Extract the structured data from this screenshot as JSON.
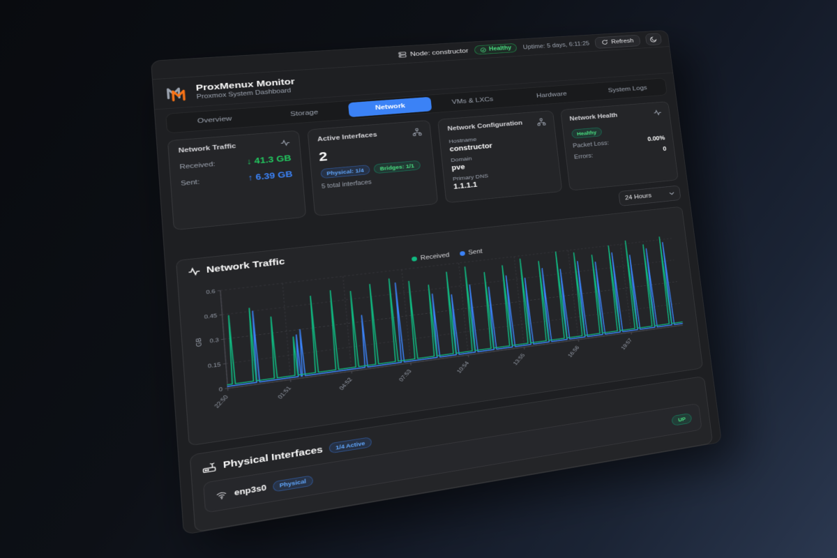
{
  "topbar": {
    "node_label": "Node: constructor",
    "health_badge": "Healthy",
    "uptime": "Uptime: 5 days, 6:11:25",
    "refresh_label": "Refresh"
  },
  "header": {
    "title": "ProxMenux Monitor",
    "subtitle": "Proxmox System Dashboard"
  },
  "tabs": {
    "items": [
      "Overview",
      "Storage",
      "Network",
      "VMs & LXCs",
      "Hardware",
      "System Logs"
    ],
    "active_index": 2
  },
  "cards": {
    "traffic": {
      "title": "Network Traffic",
      "received_label": "Received:",
      "received_value": "↓ 41.3 GB",
      "sent_label": "Sent:",
      "sent_value": "↑ 6.39 GB"
    },
    "interfaces": {
      "title": "Active Interfaces",
      "count": "2",
      "physical_badge": "Physical: 1/4",
      "bridges_badge": "Bridges: 1/1",
      "note": "5 total interfaces"
    },
    "config": {
      "title": "Network Configuration",
      "fields": [
        {
          "label": "Hostname",
          "value": "constructor"
        },
        {
          "label": "Domain",
          "value": "pve"
        },
        {
          "label": "Primary DNS",
          "value": "1.1.1.1"
        }
      ]
    },
    "health": {
      "title": "Network Health",
      "status_badge": "Healthy",
      "rows": [
        {
          "label": "Packet Loss:",
          "value": "0.00%"
        },
        {
          "label": "Errors:",
          "value": "0"
        }
      ]
    }
  },
  "time_range": "24 Hours",
  "chart_card_title": "Network Traffic",
  "chart_data": {
    "type": "line",
    "title": "Network Traffic",
    "ylabel": "GB",
    "ylim": [
      0,
      0.6
    ],
    "yticks": [
      "0",
      "0.15",
      "0.3",
      "0.45",
      "0.6"
    ],
    "xticks": [
      "22:50",
      "01:51",
      "04:52",
      "07:53",
      "10:54",
      "13:55",
      "16:56",
      "19:57"
    ],
    "x_range_hours": 24,
    "grid": "dashed",
    "legend_position": "top-center",
    "series": [
      {
        "name": "Sent",
        "color": "#3b82f6",
        "baseline_gb": 0.012,
        "spikes": [
          [
            1.45,
            0.45
          ],
          [
            3.45,
            0.27
          ],
          [
            3.65,
            0.3
          ],
          [
            6.75,
            0.34
          ],
          [
            8.6,
            0.52
          ],
          [
            10.45,
            0.42
          ],
          [
            11.45,
            0.4
          ],
          [
            12.45,
            0.45
          ],
          [
            13.45,
            0.42
          ],
          [
            14.45,
            0.48
          ],
          [
            15.45,
            0.45
          ],
          [
            16.45,
            0.5
          ],
          [
            17.45,
            0.48
          ],
          [
            18.45,
            0.52
          ],
          [
            19.45,
            0.5
          ],
          [
            20.45,
            0.55
          ],
          [
            21.45,
            0.52
          ],
          [
            22.45,
            0.55
          ],
          [
            23.45,
            0.58
          ]
        ]
      },
      {
        "name": "Received",
        "color": "#10b981",
        "baseline_gb": 0.022,
        "spikes": [
          [
            0.3,
            0.44
          ],
          [
            1.3,
            0.47
          ],
          [
            2.3,
            0.4
          ],
          [
            3.3,
            0.26
          ],
          [
            4.3,
            0.5
          ],
          [
            5.3,
            0.52
          ],
          [
            6.3,
            0.5
          ],
          [
            7.3,
            0.53
          ],
          [
            8.3,
            0.55
          ],
          [
            9.3,
            0.52
          ],
          [
            10.3,
            0.48
          ],
          [
            11.3,
            0.55
          ],
          [
            12.3,
            0.57
          ],
          [
            13.3,
            0.52
          ],
          [
            14.3,
            0.55
          ],
          [
            15.3,
            0.58
          ],
          [
            16.3,
            0.55
          ],
          [
            17.3,
            0.6
          ],
          [
            18.3,
            0.58
          ],
          [
            19.3,
            0.55
          ],
          [
            20.3,
            0.6
          ],
          [
            21.3,
            0.62
          ],
          [
            22.3,
            0.58
          ],
          [
            23.3,
            0.62
          ]
        ]
      }
    ],
    "legend_order": [
      "Received",
      "Sent"
    ]
  },
  "physical": {
    "title": "Physical Interfaces",
    "active_badge": "1/4 Active",
    "rows": [
      {
        "name": "enp3s0",
        "type_badge": "Physical",
        "status_badge": "UP"
      }
    ]
  },
  "colors": {
    "accent_blue": "#3b82f6",
    "accent_green": "#10b981",
    "logo_orange": "#f97316",
    "logo_gray": "#9ca3af"
  },
  "icons": {
    "node": "server-icon",
    "health": "check-circle-icon",
    "refresh": "refresh-icon",
    "theme": "moon-icon",
    "traffic_card": "activity-icon",
    "interfaces_card": "network-icon",
    "config_card": "network-icon",
    "health_card": "activity-icon",
    "select": "chevron-down-icon",
    "chart": "activity-icon",
    "physical_section": "router-icon",
    "iface_row": "wifi-icon"
  }
}
